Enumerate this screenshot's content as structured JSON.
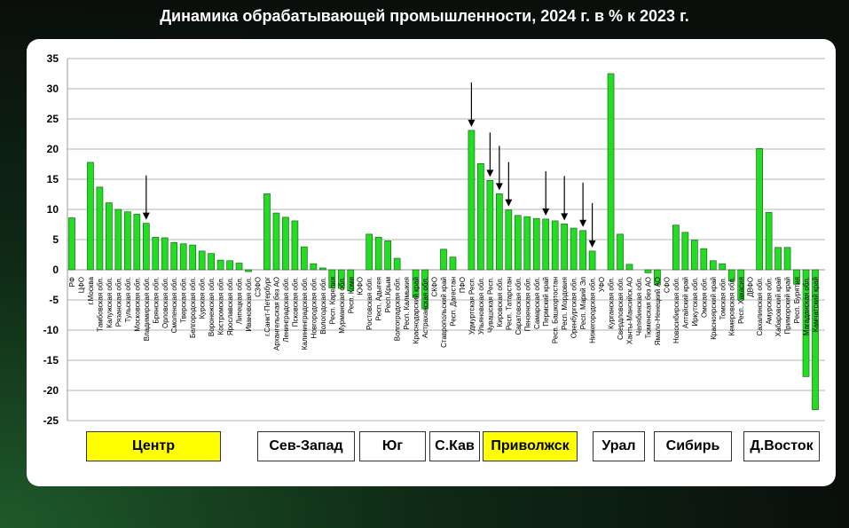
{
  "title": "Динамика обрабатывающей промышленности, 2024 г. в % к 2023 г.",
  "chart_data": {
    "type": "bar",
    "title": "Динамика обрабатывающей промышленности, 2024 г. в % к 2023 г.",
    "xlabel": "",
    "ylabel": "",
    "ylim": [
      -25,
      35
    ],
    "yticks": [
      35,
      30,
      25,
      20,
      15,
      10,
      5,
      0,
      -5,
      -10,
      -15,
      -20,
      -25
    ],
    "grid": true,
    "bar_color": "#22dd22",
    "categories": [
      "РФ",
      "ЦФО",
      "г.Москва",
      "Тамбовская обл.",
      "Калужская обл.",
      "Рязанская обл.",
      "Тульская обл.",
      "Московская обл.",
      "Владимирская обл.",
      "Брянская обл.",
      "Орловская обл.",
      "Смоленская обл.",
      "Тверская обл.",
      "Белгородская обл.",
      "Курская обл.",
      "Воронежская обл.",
      "Костромская обл.",
      "Ярославская обл.",
      "Липецкая обл.",
      "Ивановская обл.",
      "СЗФО",
      "г.Санкт-Петербург",
      "Архангельская без АО",
      "Ленинградская обл.",
      "Псковская обл.",
      "Калининградская обл.",
      "Новгородская обл.",
      "Вологодская обл.",
      "Респ. Карелия",
      "Мурманская обл.",
      "Респ. Коми",
      "ЮФО",
      "Ростовская обл.",
      "Респ. Адыгея",
      "Респ.Крым",
      "Волгоградская обл.",
      "Респ. Калмыкия",
      "Краснодарский край",
      "Астраханская обл.",
      "СКФО",
      "Ставропольский край",
      "Респ. Дагестан",
      "ПФО",
      "Удмуртская Респ.",
      "Ульяновская обл.",
      "Чувашская Респ.",
      "Кировская обл.",
      "Респ. Татарстан",
      "Саратовская обл.",
      "Пензенская обл.",
      "Самарская обл.",
      "Пермский край",
      "Респ. Башкортостан",
      "Респ. Мордовия",
      "Оренбургская обл.",
      "Респ. Марий Эл",
      "Нижегородская обл.",
      "УФО",
      "Курганская обл.",
      "Свердловская обл.",
      "Ханты-Мансийск.АО",
      "Челябинская обл.",
      "Тюменская без АО",
      "Ямало-Ненецкий АО",
      "СФО",
      "Новосибирская обл.",
      "Алтайский край",
      "Иркутская обл.",
      "Омская обл.",
      "Красноярский край",
      "Томская обл.",
      "Кемеровская обл.",
      "Респ. Хакасия",
      "ДВФО",
      "Сахалинская обл.",
      "Амурская обл.",
      "Хабаровский край",
      "Приморский край",
      "Респ. Бурятия",
      "Магаданская обл.",
      "Камчатский край"
    ],
    "values": [
      8.6,
      null,
      17.8,
      13.7,
      11.1,
      10.0,
      9.6,
      9.2,
      7.7,
      5.4,
      5.3,
      4.5,
      4.3,
      4.1,
      3.1,
      2.7,
      1.6,
      1.5,
      1.1,
      -0.3,
      null,
      12.6,
      9.4,
      8.7,
      8.1,
      3.8,
      1.0,
      0.3,
      -3.0,
      -3.1,
      -3.5,
      null,
      5.9,
      5.4,
      4.8,
      1.9,
      null,
      -4.6,
      -6.5,
      null,
      3.4,
      2.1,
      null,
      23.1,
      17.6,
      14.8,
      12.6,
      9.9,
      9.0,
      8.8,
      8.5,
      8.4,
      8.1,
      7.6,
      6.9,
      6.5,
      3.1,
      null,
      32.5,
      5.9,
      0.9,
      null,
      -0.5,
      -2.5,
      null,
      7.4,
      6.2,
      4.9,
      3.5,
      1.5,
      1.0,
      -1.9,
      -5.0,
      null,
      20.1,
      9.5,
      3.7,
      3.7,
      -2.4,
      -17.7,
      -23.2
    ],
    "arrow_marks": [
      "Владимирская обл.",
      "Удмуртская Респ.",
      "Чувашская Респ.",
      "Кировская обл.",
      "Респ. Татарстан",
      "Пермский край",
      "Респ. Мордовия",
      "Респ. Марий Эл",
      "Нижегородская обл."
    ]
  },
  "legend_buttons": [
    {
      "label": "Центр",
      "highlighted": true
    },
    {
      "label": "Сев-Запад",
      "highlighted": false
    },
    {
      "label": "Юг",
      "highlighted": false
    },
    {
      "label": "С.Кав",
      "highlighted": false
    },
    {
      "label": "Приволжск",
      "highlighted": true
    },
    {
      "label": "Урал",
      "highlighted": false
    },
    {
      "label": "Сибирь",
      "highlighted": false
    },
    {
      "label": "Д.Восток",
      "highlighted": false
    }
  ],
  "colors": {
    "highlight": "#ffff00",
    "bar": "#22dd22"
  }
}
